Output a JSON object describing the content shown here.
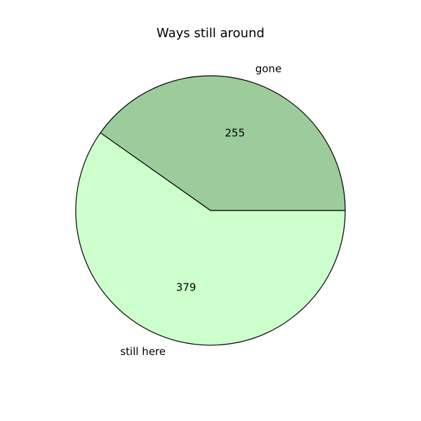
{
  "chart_data": {
    "type": "pie",
    "title": "Ways still around",
    "slices": [
      {
        "label": "gone",
        "value": 255,
        "color": "#9ccc9c"
      },
      {
        "label": "still here",
        "value": 379,
        "color": "#ccffcc"
      }
    ],
    "start_angle_deg": 0,
    "direction": "counterclockwise",
    "edge_color": "#000000",
    "legend": "none"
  }
}
